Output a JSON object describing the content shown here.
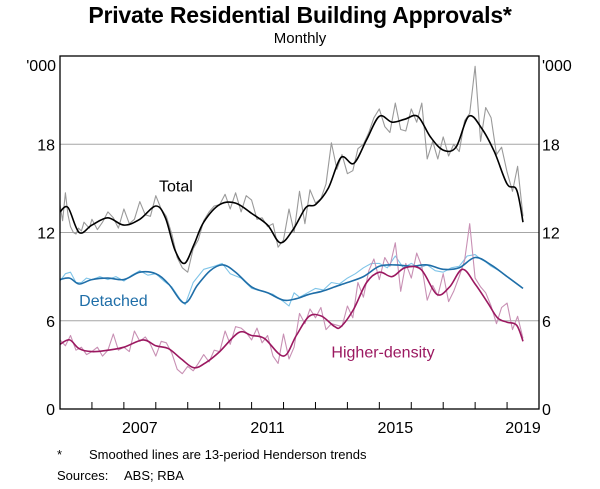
{
  "header": {
    "title": "Private Residential Building Approvals*",
    "subtitle": "Monthly"
  },
  "footer": {
    "footnote_marker": "*",
    "footnote_text": "Smoothed lines are 13-period Henderson trends",
    "sources_label": "Sources:",
    "sources_text": "ABS; RBA"
  },
  "colors": {
    "total_raw": "#9a9a9a",
    "total_trend": "#000000",
    "detached_raw": "#7fc4e8",
    "detached_trend": "#1f6ea8",
    "higher_density_raw": "#c890b4",
    "higher_density_trend": "#9b1860",
    "gridline": "#a6a6a6"
  },
  "chart_data": {
    "type": "line",
    "title": "Private Residential Building Approvals*",
    "subtitle": "Monthly",
    "xlabel": "",
    "ylabel": "'000",
    "y_unit_left": "'000",
    "y_unit_right": "'000",
    "xlim": [
      2005.0,
      2020.0
    ],
    "ylim": [
      0,
      24
    ],
    "yticks": [
      0,
      6,
      12,
      18
    ],
    "xtick_labels": [
      "2007",
      "2011",
      "2015",
      "2019"
    ],
    "xtick_label_positions": [
      2007.5,
      2011.5,
      2015.5,
      2019.5
    ],
    "minor_ticks_every_year": true,
    "grid": true,
    "legend": "inline labels",
    "annotations": [
      {
        "text": "Total",
        "series": "Total",
        "at": [
          2008.1,
          14.8
        ]
      },
      {
        "text": "Detached",
        "series": "Detached",
        "at": [
          2005.6,
          7.0
        ]
      },
      {
        "text": "Higher-density",
        "series": "Higher-density",
        "at": [
          2013.5,
          3.5
        ]
      }
    ],
    "series": [
      {
        "name": "Total",
        "kind": "trend",
        "color": "#000000",
        "x": [
          2005.0,
          2005.25,
          2005.6,
          2006.0,
          2006.5,
          2007.0,
          2007.5,
          2008.0,
          2008.3,
          2008.6,
          2008.9,
          2009.2,
          2009.5,
          2010.0,
          2010.5,
          2011.0,
          2011.5,
          2011.9,
          2012.3,
          2012.7,
          2013.0,
          2013.4,
          2013.8,
          2014.2,
          2014.6,
          2015.0,
          2015.4,
          2015.8,
          2016.2,
          2016.6,
          2017.0,
          2017.4,
          2017.8,
          2018.2,
          2018.6,
          2019.0,
          2019.3,
          2019.5
        ],
        "y": [
          13.4,
          13.7,
          12.0,
          12.5,
          13.0,
          12.5,
          12.9,
          13.8,
          13.0,
          10.8,
          9.9,
          11.2,
          12.7,
          13.9,
          14.0,
          13.3,
          12.5,
          11.3,
          12.2,
          13.7,
          13.9,
          15.0,
          17.1,
          16.7,
          18.3,
          19.9,
          19.5,
          19.7,
          19.9,
          18.5,
          17.6,
          17.8,
          19.9,
          19.1,
          17.5,
          15.3,
          14.9,
          12.7
        ]
      },
      {
        "name": "Total (raw)",
        "kind": "raw",
        "color": "#9a9a9a",
        "x": [
          2005.0,
          2005.08,
          2005.17,
          2005.25,
          2005.33,
          2005.42,
          2005.5,
          2005.58,
          2005.67,
          2005.75,
          2005.83,
          2005.92,
          2006.0,
          2006.17,
          2006.33,
          2006.5,
          2006.67,
          2006.83,
          2007.0,
          2007.17,
          2007.33,
          2007.5,
          2007.67,
          2007.83,
          2008.0,
          2008.17,
          2008.33,
          2008.5,
          2008.67,
          2008.83,
          2009.0,
          2009.17,
          2009.33,
          2009.5,
          2009.67,
          2009.83,
          2010.0,
          2010.17,
          2010.33,
          2010.5,
          2010.67,
          2010.83,
          2011.0,
          2011.17,
          2011.33,
          2011.5,
          2011.67,
          2011.83,
          2012.0,
          2012.17,
          2012.33,
          2012.5,
          2012.67,
          2012.83,
          2013.0,
          2013.17,
          2013.33,
          2013.5,
          2013.67,
          2013.83,
          2014.0,
          2014.17,
          2014.33,
          2014.5,
          2014.67,
          2014.83,
          2015.0,
          2015.17,
          2015.33,
          2015.5,
          2015.67,
          2015.83,
          2016.0,
          2016.17,
          2016.33,
          2016.5,
          2016.67,
          2016.83,
          2017.0,
          2017.17,
          2017.33,
          2017.5,
          2017.67,
          2017.83,
          2018.0,
          2018.17,
          2018.33,
          2018.5,
          2018.67,
          2018.83,
          2019.0,
          2019.17,
          2019.33,
          2019.5
        ],
        "y": [
          13.9,
          12.8,
          14.7,
          13.2,
          12.4,
          12.0,
          11.9,
          12.3,
          12.1,
          12.7,
          12.5,
          12.3,
          12.9,
          12.2,
          12.7,
          13.4,
          13.0,
          12.3,
          13.6,
          12.6,
          12.9,
          14.1,
          13.2,
          13.1,
          14.5,
          13.6,
          13.1,
          11.9,
          10.3,
          9.6,
          9.3,
          10.9,
          11.5,
          12.8,
          13.4,
          13.8,
          13.9,
          14.6,
          13.6,
          14.7,
          13.4,
          14.5,
          14.2,
          12.9,
          13.0,
          12.4,
          12.6,
          11.0,
          11.5,
          13.6,
          12.0,
          14.8,
          12.6,
          14.9,
          14.0,
          14.3,
          15.3,
          18.1,
          16.3,
          17.3,
          16.0,
          16.2,
          17.7,
          18.0,
          18.8,
          19.8,
          20.4,
          19.2,
          18.8,
          20.8,
          19.0,
          18.9,
          20.4,
          19.5,
          20.8,
          17.0,
          18.2,
          17.0,
          18.5,
          17.2,
          18.0,
          17.5,
          19.6,
          20.1,
          23.3,
          18.2,
          20.5,
          19.8,
          17.3,
          17.8,
          16.1,
          14.8,
          16.5,
          13.1
        ]
      },
      {
        "name": "Detached",
        "kind": "trend",
        "color": "#1f6ea8",
        "x": [
          2005.0,
          2005.3,
          2005.6,
          2006.0,
          2006.5,
          2007.0,
          2007.5,
          2008.0,
          2008.4,
          2008.9,
          2009.3,
          2009.7,
          2010.1,
          2010.5,
          2011.0,
          2011.5,
          2012.0,
          2012.4,
          2012.8,
          2013.2,
          2013.6,
          2014.0,
          2014.5,
          2015.0,
          2015.5,
          2016.0,
          2016.5,
          2017.0,
          2017.5,
          2018.0,
          2018.5,
          2019.0,
          2019.5
        ],
        "y": [
          8.8,
          8.9,
          8.5,
          8.8,
          8.9,
          8.8,
          9.3,
          9.2,
          8.5,
          7.2,
          8.4,
          9.4,
          9.8,
          9.3,
          8.3,
          7.9,
          7.4,
          7.5,
          7.8,
          8.0,
          8.3,
          8.6,
          9.0,
          9.7,
          9.8,
          9.7,
          9.8,
          9.5,
          9.6,
          10.3,
          9.8,
          9.0,
          8.2
        ]
      },
      {
        "name": "Detached (raw)",
        "kind": "raw",
        "color": "#7fc4e8",
        "x": [
          2005.0,
          2005.17,
          2005.33,
          2005.5,
          2005.67,
          2005.83,
          2006.0,
          2006.25,
          2006.5,
          2006.75,
          2007.0,
          2007.25,
          2007.5,
          2007.75,
          2008.0,
          2008.25,
          2008.5,
          2008.75,
          2008.92,
          2009.17,
          2009.5,
          2009.83,
          2010.08,
          2010.33,
          2010.67,
          2011.0,
          2011.33,
          2011.67,
          2012.0,
          2012.17,
          2012.33,
          2012.5,
          2012.75,
          2013.0,
          2013.25,
          2013.5,
          2013.75,
          2014.0,
          2014.25,
          2014.5,
          2014.75,
          2015.0,
          2015.25,
          2015.5,
          2015.75,
          2016.0,
          2016.25,
          2016.5,
          2016.75,
          2017.0,
          2017.25,
          2017.5,
          2017.75,
          2018.0,
          2018.17,
          2018.33,
          2018.5,
          2018.75,
          2019.0,
          2019.25,
          2019.5
        ],
        "y": [
          8.7,
          9.2,
          9.3,
          8.6,
          8.6,
          8.9,
          8.8,
          9.0,
          8.8,
          9.0,
          8.7,
          9.1,
          9.4,
          9.1,
          9.2,
          8.7,
          8.3,
          7.5,
          7.1,
          8.6,
          9.5,
          9.7,
          9.9,
          9.2,
          8.9,
          8.2,
          8.0,
          7.8,
          7.3,
          7.0,
          7.9,
          7.6,
          7.9,
          8.2,
          8.1,
          8.6,
          8.5,
          8.9,
          9.2,
          9.6,
          9.9,
          9.9,
          9.6,
          10.4,
          9.6,
          9.9,
          9.6,
          9.8,
          9.4,
          9.3,
          9.6,
          9.7,
          10.4,
          10.5,
          10.2,
          10.0,
          9.7,
          9.4,
          9.0,
          8.6,
          8.2
        ]
      },
      {
        "name": "Higher-density",
        "kind": "trend",
        "color": "#9b1860",
        "x": [
          2005.0,
          2005.3,
          2005.6,
          2006.0,
          2006.5,
          2007.0,
          2007.6,
          2008.0,
          2008.4,
          2008.8,
          2009.2,
          2009.6,
          2010.0,
          2010.6,
          2011.0,
          2011.4,
          2012.0,
          2012.4,
          2012.8,
          2013.2,
          2013.6,
          2013.8,
          2014.2,
          2014.6,
          2015.0,
          2015.4,
          2015.8,
          2016.3,
          2016.8,
          2017.2,
          2017.6,
          2018.0,
          2018.4,
          2018.7,
          2019.0,
          2019.3,
          2019.5
        ],
        "y": [
          4.4,
          4.7,
          4.1,
          3.9,
          4.0,
          4.2,
          4.7,
          4.3,
          4.1,
          3.4,
          2.8,
          3.2,
          3.9,
          5.2,
          5.0,
          4.8,
          3.6,
          5.0,
          6.3,
          6.3,
          5.6,
          5.6,
          6.8,
          8.6,
          9.3,
          9.0,
          9.6,
          9.5,
          7.8,
          8.3,
          9.5,
          8.5,
          7.2,
          6.2,
          5.9,
          5.7,
          4.6
        ]
      },
      {
        "name": "Higher-density (raw)",
        "kind": "raw",
        "color": "#c890b4",
        "x": [
          2005.0,
          2005.17,
          2005.33,
          2005.5,
          2005.67,
          2005.83,
          2006.0,
          2006.17,
          2006.33,
          2006.5,
          2006.67,
          2006.83,
          2007.0,
          2007.17,
          2007.33,
          2007.5,
          2007.67,
          2007.83,
          2008.0,
          2008.17,
          2008.33,
          2008.5,
          2008.67,
          2008.83,
          2009.0,
          2009.17,
          2009.33,
          2009.5,
          2009.67,
          2009.83,
          2010.0,
          2010.17,
          2010.33,
          2010.5,
          2010.67,
          2010.83,
          2011.0,
          2011.17,
          2011.33,
          2011.5,
          2011.67,
          2011.83,
          2012.0,
          2012.17,
          2012.33,
          2012.5,
          2012.67,
          2012.83,
          2013.0,
          2013.17,
          2013.33,
          2013.5,
          2013.67,
          2013.83,
          2014.0,
          2014.17,
          2014.33,
          2014.5,
          2014.67,
          2014.83,
          2015.0,
          2015.17,
          2015.33,
          2015.5,
          2015.67,
          2015.83,
          2016.0,
          2016.17,
          2016.33,
          2016.5,
          2016.67,
          2016.83,
          2017.0,
          2017.17,
          2017.33,
          2017.5,
          2017.67,
          2017.83,
          2018.0,
          2018.17,
          2018.33,
          2018.5,
          2018.67,
          2018.83,
          2019.0,
          2019.17,
          2019.33,
          2019.5
        ],
        "y": [
          4.7,
          4.3,
          5.0,
          4.0,
          4.2,
          3.7,
          3.9,
          4.2,
          3.6,
          4.0,
          5.1,
          4.0,
          4.2,
          3.9,
          5.3,
          4.6,
          4.9,
          4.4,
          3.6,
          4.6,
          4.5,
          3.8,
          2.7,
          2.4,
          2.9,
          2.6,
          3.1,
          3.7,
          3.2,
          4.0,
          3.9,
          5.3,
          4.4,
          5.6,
          5.5,
          5.2,
          4.7,
          5.5,
          4.5,
          5.0,
          3.6,
          3.1,
          5.1,
          3.4,
          4.2,
          6.5,
          5.8,
          6.8,
          6.2,
          6.9,
          5.4,
          5.8,
          5.7,
          5.6,
          7.0,
          6.2,
          8.6,
          7.6,
          9.4,
          10.2,
          8.8,
          10.3,
          9.7,
          11.3,
          8.0,
          9.9,
          8.9,
          10.6,
          9.7,
          7.4,
          8.4,
          7.7,
          9.2,
          7.3,
          8.0,
          9.0,
          10.1,
          12.6,
          8.9,
          8.3,
          7.9,
          7.0,
          5.8,
          6.9,
          7.2,
          5.4,
          6.3,
          4.8
        ]
      }
    ]
  }
}
